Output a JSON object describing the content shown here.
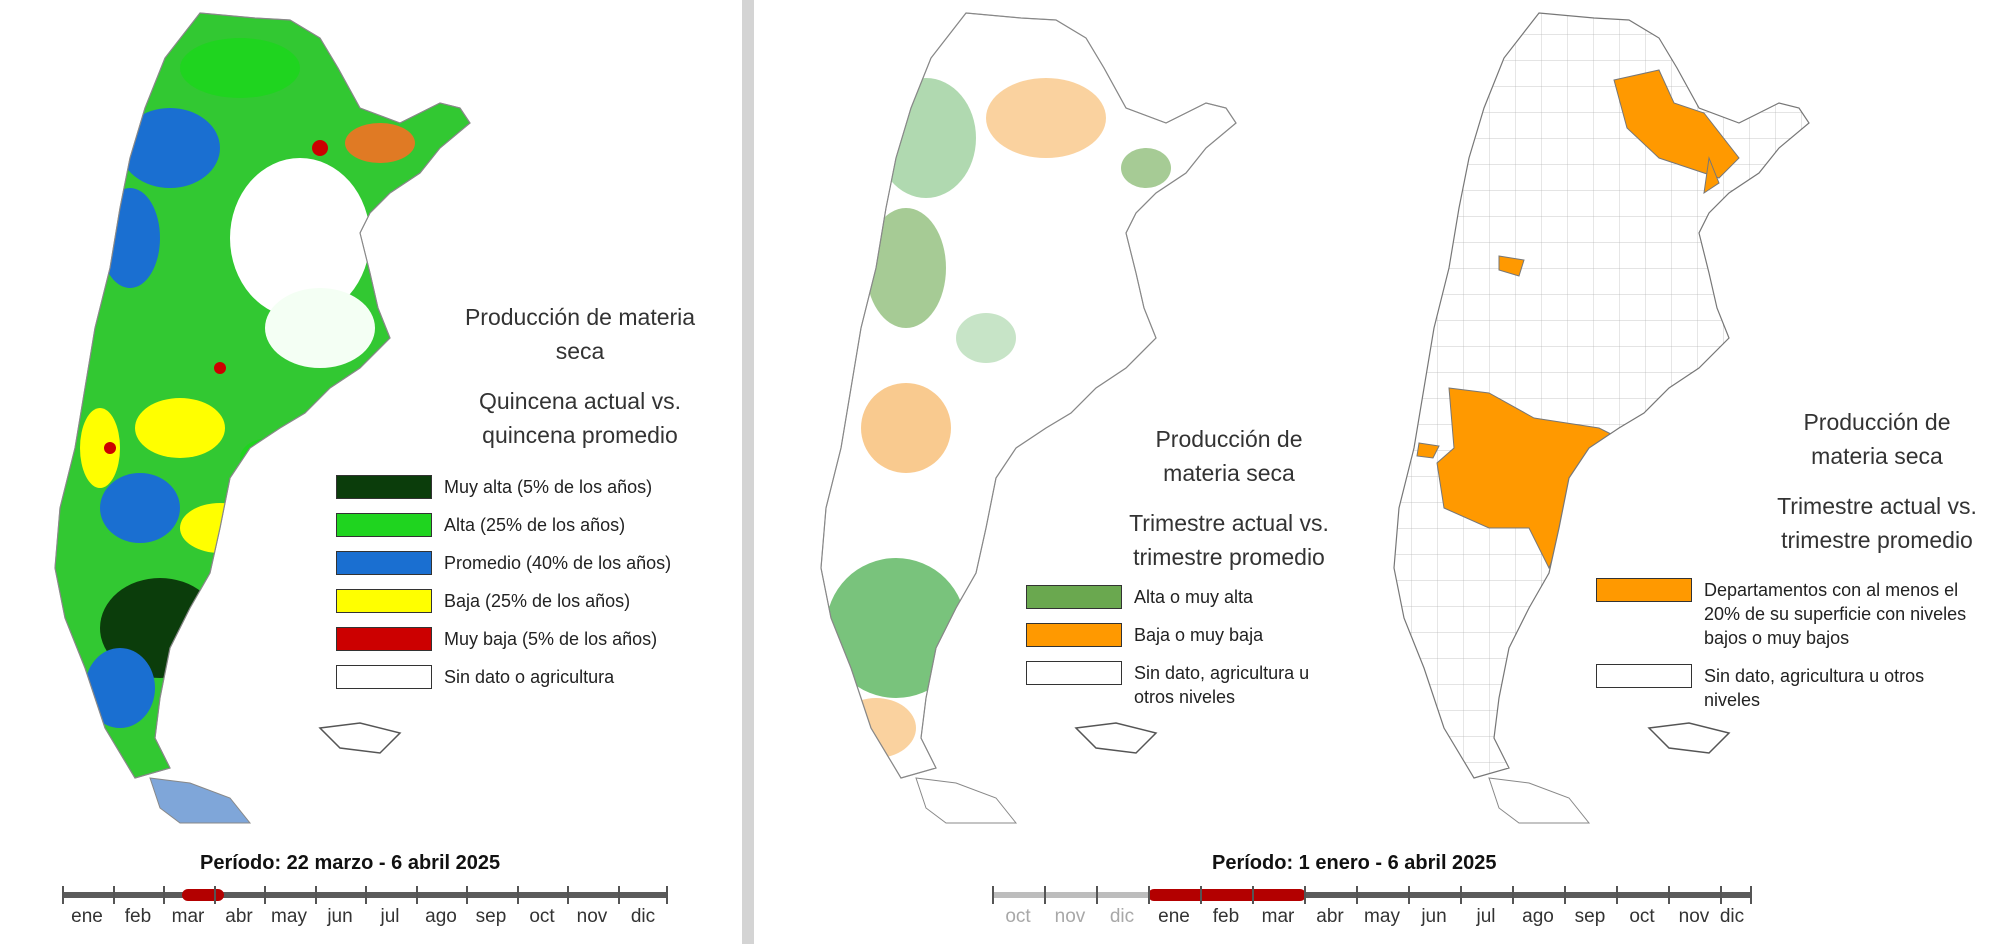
{
  "left_panel": {
    "title_lines": [
      "Producción de materia",
      "seca"
    ],
    "subtitle_lines": [
      "Quincena actual vs.",
      "quincena  promedio"
    ],
    "legend": [
      {
        "label": "Muy alta (5% de los años)",
        "color": "#0b3d0b"
      },
      {
        "label": "Alta (25% de los años)",
        "color": "#1fd41f"
      },
      {
        "label": "Promedio (40% de los años)",
        "color": "#1a6fd1"
      },
      {
        "label": "Baja (25% de los años)",
        "color": "#ffff00"
      },
      {
        "label": "Muy baja (5% de los años)",
        "color": "#cc0000"
      },
      {
        "label": "Sin dato o agricultura",
        "color": "#ffffff"
      }
    ],
    "period_label": "Período:  22 marzo  - 6 abril 2025",
    "timeline_months": [
      "ene",
      "feb",
      "mar",
      "abr",
      "may",
      "jun",
      "jul",
      "ago",
      "sep",
      "oct",
      "nov",
      "dic"
    ]
  },
  "middle_panel": {
    "title_lines": [
      "Producción de",
      "materia seca"
    ],
    "subtitle_lines": [
      "Trimestre actual vs.",
      "trimestre promedio"
    ],
    "legend": [
      {
        "label": "Alta o muy alta",
        "color": "#6aa84f"
      },
      {
        "label": "Baja o muy baja",
        "color": "#ff9900"
      },
      {
        "label": "Sin dato, agricultura u otros niveles",
        "color": "#ffffff"
      }
    ]
  },
  "right_panel": {
    "title_lines": [
      "Producción de",
      "materia seca"
    ],
    "subtitle_lines": [
      "Trimestre actual vs.",
      "trimestre promedio"
    ],
    "legend": [
      {
        "label": "Departamentos con al menos el 20% de su superficie con niveles bajos o muy bajos",
        "color": "#ff9900"
      },
      {
        "label": "Sin dato, agricultura u otros niveles",
        "color": "#ffffff"
      }
    ]
  },
  "right_timeline": {
    "period_label": "Período:  1 enero  - 6 abril 2025",
    "faded_months": [
      "oct",
      "nov",
      "dic"
    ],
    "timeline_months": [
      "ene",
      "feb",
      "mar",
      "abr",
      "may",
      "jun",
      "jul",
      "ago",
      "sep",
      "oct",
      "nov",
      "dic"
    ]
  }
}
